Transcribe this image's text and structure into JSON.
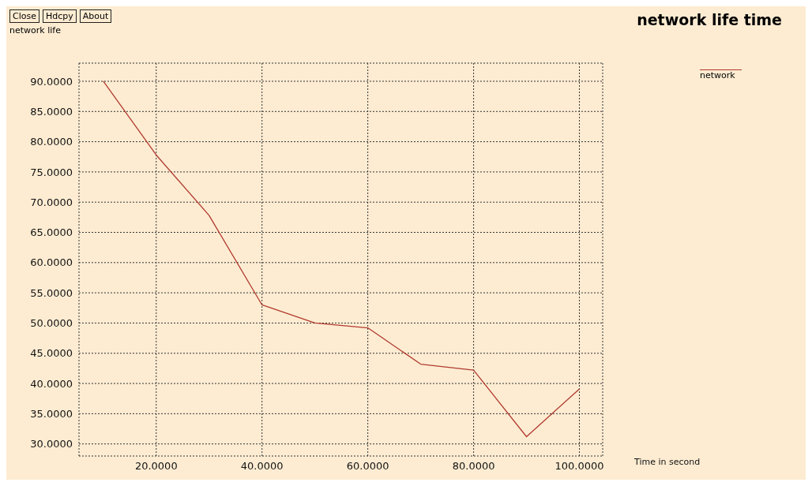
{
  "chart_data": {
    "type": "line",
    "title": "network life time",
    "ylabel": "network life",
    "xlabel": "Time in second",
    "annotations": [
      "Close",
      "Hdcpy",
      "About"
    ],
    "x": [
      10,
      20,
      30,
      40,
      50,
      60,
      70,
      80,
      90,
      100
    ],
    "series": [
      {
        "name": "network",
        "color": "#b03a2e",
        "values": [
          90,
          77.8,
          67.8,
          53,
          50,
          49.2,
          43.2,
          42.2,
          31.2,
          39.1
        ]
      }
    ],
    "xlim": [
      5.4,
      104.4
    ],
    "xticks": [
      {
        "value": 20,
        "label": "20.0000"
      },
      {
        "value": 40,
        "label": "40.0000"
      },
      {
        "value": 60,
        "label": "60.0000"
      },
      {
        "value": 80,
        "label": "80.0000"
      },
      {
        "value": 100,
        "label": "100.0000"
      }
    ],
    "ylim": [
      28,
      93
    ],
    "yticks": [
      {
        "value": 30,
        "label": "30.0000"
      },
      {
        "value": 35,
        "label": "35.0000"
      },
      {
        "value": 40,
        "label": "40.0000"
      },
      {
        "value": 45,
        "label": "45.0000"
      },
      {
        "value": 50,
        "label": "50.0000"
      },
      {
        "value": 55,
        "label": "55.0000"
      },
      {
        "value": 60,
        "label": "60.0000"
      },
      {
        "value": 65,
        "label": "65.0000"
      },
      {
        "value": 70,
        "label": "70.0000"
      },
      {
        "value": 75,
        "label": "75.0000"
      },
      {
        "value": 80,
        "label": "80.0000"
      },
      {
        "value": 85,
        "label": "85.0000"
      },
      {
        "value": 90,
        "label": "90.0000"
      }
    ],
    "grid": true,
    "legend": "top right",
    "marker": "none",
    "line_style": "solid"
  }
}
